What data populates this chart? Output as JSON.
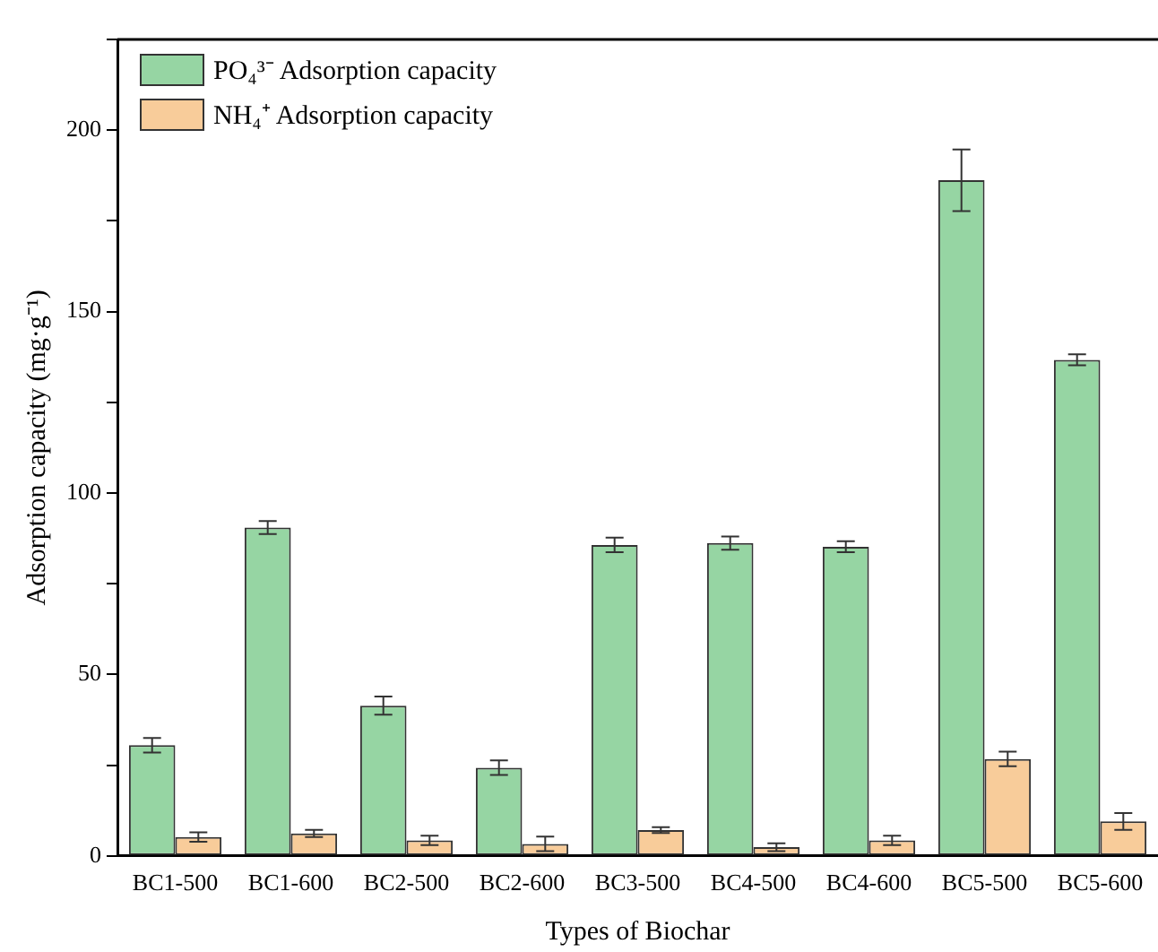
{
  "chart_data": {
    "type": "bar",
    "xlabel": "Types of Biochar",
    "ylabel": "Adsorption capacity (mg·g⁻¹)",
    "categories": [
      "BC1-500",
      "BC1-600",
      "BC2-500",
      "BC2-600",
      "BC3-500",
      "BC4-500",
      "BC4-600",
      "BC5-500",
      "BC5-600"
    ],
    "series": [
      {
        "name": "PO₄³⁻  Adsorption capacity",
        "color": "#96d5a3",
        "values": [
          30.5,
          90.5,
          41.4,
          24.3,
          85.7,
          86.2,
          85.2,
          186.2,
          136.7
        ],
        "errors": [
          2,
          1.8,
          2.5,
          2,
          2,
          1.8,
          1.5,
          8.5,
          1.5
        ]
      },
      {
        "name": "NH₄⁺  Adsorption capacity",
        "color": "#f8cc9a",
        "values": [
          5.2,
          6.2,
          4.3,
          3.3,
          7.1,
          2.4,
          4.3,
          26.7,
          9.5
        ],
        "errors": [
          1.3,
          1,
          1.3,
          2,
          0.8,
          1.1,
          1.3,
          2,
          2.3
        ]
      }
    ],
    "ylim": [
      0,
      225
    ],
    "yticks": [
      0,
      {
        "value": 25,
        "label": null
      },
      50,
      {
        "value": 75,
        "label": null
      },
      100,
      {
        "value": 125,
        "label": null
      },
      150,
      {
        "value": 175,
        "label": null
      },
      200,
      {
        "value": 225,
        "label": null
      }
    ],
    "grid": false,
    "legend": "top left"
  }
}
